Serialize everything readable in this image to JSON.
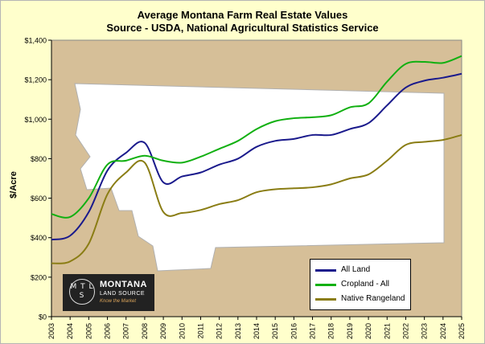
{
  "title": "Average Montana Farm Real Estate Values",
  "subtitle": "Source - USDA, National Agricultural Statistics Service",
  "logo": {
    "mark": "M T L S",
    "name": "MONTANA",
    "sub": "LAND SOURCE",
    "tagline": "Know the Market"
  },
  "colors": {
    "background": "#ffffcc",
    "plot_area": "#d6bf98",
    "map_fill": "#ffffff",
    "all_land": "#1a1a8c",
    "cropland": "#11b011",
    "native_rangeland": "#8a7d14"
  },
  "chart_data": {
    "type": "line",
    "title": "Average Montana Farm Real Estate Values",
    "subtitle": "Source - USDA, National Agricultural Statistics Service",
    "xlabel": "",
    "ylabel": "$/Acre",
    "ylim": [
      0,
      1400
    ],
    "yticks": [
      0,
      200,
      400,
      600,
      800,
      1000,
      1200,
      1400
    ],
    "ytick_labels": [
      "$0",
      "$200",
      "$400",
      "$600",
      "$800",
      "$1,000",
      "$1,200",
      "$1,400"
    ],
    "x": [
      "2003",
      "2004",
      "2005",
      "2006",
      "2007",
      "2008",
      "2009",
      "2010",
      "2011",
      "2012",
      "2013",
      "2014",
      "2015",
      "2016",
      "2017",
      "2018",
      "2019",
      "2020",
      "2021",
      "2022",
      "2023",
      "2024",
      "2025"
    ],
    "grid": false,
    "legend_position": "bottom-right",
    "series": [
      {
        "name": "All Land",
        "color": "#1a1a8c",
        "values": [
          390,
          410,
          530,
          740,
          830,
          880,
          680,
          710,
          730,
          770,
          800,
          860,
          890,
          900,
          920,
          920,
          950,
          980,
          1070,
          1160,
          1195,
          1210,
          1230
        ]
      },
      {
        "name": "Cropland - All",
        "color": "#11b011",
        "values": [
          520,
          505,
          600,
          770,
          790,
          815,
          790,
          780,
          810,
          850,
          890,
          950,
          990,
          1005,
          1010,
          1020,
          1060,
          1080,
          1190,
          1280,
          1290,
          1285,
          1320
        ]
      },
      {
        "name": "Native Rangeland",
        "color": "#8a7d14",
        "values": [
          270,
          280,
          370,
          620,
          730,
          780,
          530,
          525,
          540,
          570,
          590,
          630,
          645,
          650,
          655,
          670,
          700,
          720,
          790,
          870,
          885,
          895,
          920
        ]
      }
    ]
  }
}
